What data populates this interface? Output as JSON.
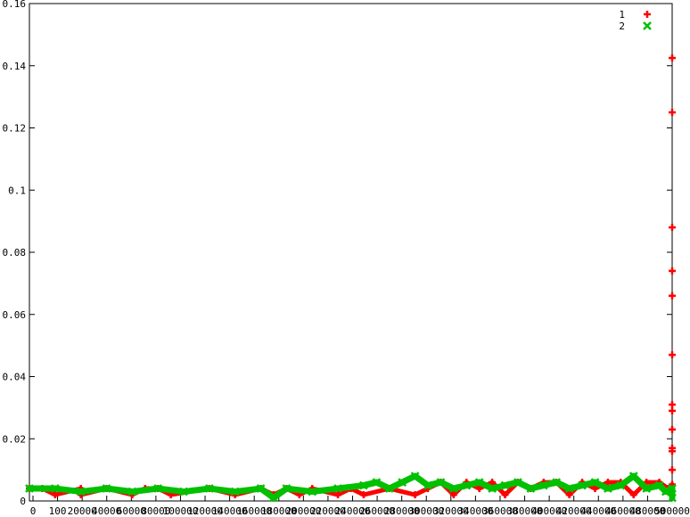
{
  "chart_data": {
    "type": "scatter",
    "title": "",
    "xlabel": "",
    "ylabel": "",
    "ylim": [
      0,
      0.16
    ],
    "y_ticks": [
      "0",
      "0.02",
      "0.04",
      "0.06",
      "0.08",
      "0.1",
      "0.12",
      "0.14",
      "0.16"
    ],
    "x_tick_labels": [
      "0",
      "100",
      "20000",
      "40000",
      "60000",
      "80000",
      "100000",
      "120000",
      "140000",
      "160000",
      "180000",
      "200000",
      "220000",
      "240000",
      "260000",
      "280000",
      "300000",
      "320000",
      "340000",
      "360000",
      "380000",
      "400000",
      "420000",
      "440000",
      "460000",
      "480000",
      "500000"
    ],
    "grid": false,
    "legend_position": "top-right",
    "series": [
      {
        "name": "1",
        "color": "#ff0000",
        "marker": "plus",
        "points": [
          [
            0,
            0.004
          ],
          [
            10000,
            0.004
          ],
          [
            20000,
            0.002
          ],
          [
            40000,
            0.004
          ],
          [
            40000,
            0.002
          ],
          [
            60000,
            0.004
          ],
          [
            80000,
            0.002
          ],
          [
            90000,
            0.004
          ],
          [
            100000,
            0.004
          ],
          [
            110000,
            0.002
          ],
          [
            140000,
            0.004
          ],
          [
            160000,
            0.002
          ],
          [
            180000,
            0.004
          ],
          [
            190000,
            0.002
          ],
          [
            200000,
            0.004
          ],
          [
            210000,
            0.002
          ],
          [
            220000,
            0.004
          ],
          [
            240000,
            0.002
          ],
          [
            250000,
            0.004
          ],
          [
            260000,
            0.002
          ],
          [
            280000,
            0.004
          ],
          [
            300000,
            0.002
          ],
          [
            310000,
            0.004
          ],
          [
            320000,
            0.006
          ],
          [
            330000,
            0.002
          ],
          [
            340000,
            0.006
          ],
          [
            350000,
            0.004
          ],
          [
            360000,
            0.006
          ],
          [
            370000,
            0.002
          ],
          [
            380000,
            0.006
          ],
          [
            390000,
            0.004
          ],
          [
            400000,
            0.006
          ],
          [
            410000,
            0.006
          ],
          [
            420000,
            0.002
          ],
          [
            430000,
            0.006
          ],
          [
            440000,
            0.004
          ],
          [
            450000,
            0.006
          ],
          [
            460000,
            0.006
          ],
          [
            470000,
            0.002
          ],
          [
            480000,
            0.006
          ],
          [
            490000,
            0.006
          ],
          [
            497000,
            0.004
          ],
          [
            499000,
            0.002
          ],
          [
            500000,
            0.0053
          ],
          [
            500000,
            0.01
          ],
          [
            500000,
            0.016
          ],
          [
            500000,
            0.017
          ],
          [
            500000,
            0.023
          ],
          [
            500000,
            0.029
          ],
          [
            500000,
            0.031
          ],
          [
            500000,
            0.047
          ],
          [
            500000,
            0.066
          ],
          [
            500000,
            0.074
          ],
          [
            500000,
            0.088
          ],
          [
            500000,
            0.125
          ],
          [
            500000,
            0.1425
          ]
        ]
      },
      {
        "name": "2",
        "color": "#00c000",
        "marker": "cross",
        "points": [
          [
            0,
            0.004
          ],
          [
            20000,
            0.004
          ],
          [
            40000,
            0.003
          ],
          [
            60000,
            0.004
          ],
          [
            80000,
            0.003
          ],
          [
            100000,
            0.004
          ],
          [
            120000,
            0.003
          ],
          [
            140000,
            0.004
          ],
          [
            160000,
            0.003
          ],
          [
            180000,
            0.004
          ],
          [
            190000,
            0.001
          ],
          [
            200000,
            0.004
          ],
          [
            220000,
            0.003
          ],
          [
            240000,
            0.004
          ],
          [
            260000,
            0.005
          ],
          [
            270000,
            0.006
          ],
          [
            280000,
            0.004
          ],
          [
            290000,
            0.006
          ],
          [
            300000,
            0.008
          ],
          [
            310000,
            0.005
          ],
          [
            320000,
            0.006
          ],
          [
            330000,
            0.004
          ],
          [
            340000,
            0.005
          ],
          [
            350000,
            0.006
          ],
          [
            360000,
            0.004
          ],
          [
            370000,
            0.005
          ],
          [
            380000,
            0.006
          ],
          [
            390000,
            0.004
          ],
          [
            400000,
            0.005
          ],
          [
            410000,
            0.006
          ],
          [
            420000,
            0.004
          ],
          [
            430000,
            0.005
          ],
          [
            440000,
            0.006
          ],
          [
            450000,
            0.004
          ],
          [
            460000,
            0.005
          ],
          [
            470000,
            0.008
          ],
          [
            480000,
            0.004
          ],
          [
            490000,
            0.005
          ],
          [
            495000,
            0.003
          ],
          [
            500000,
            0.004
          ],
          [
            500000,
            0.001
          ]
        ]
      }
    ]
  }
}
